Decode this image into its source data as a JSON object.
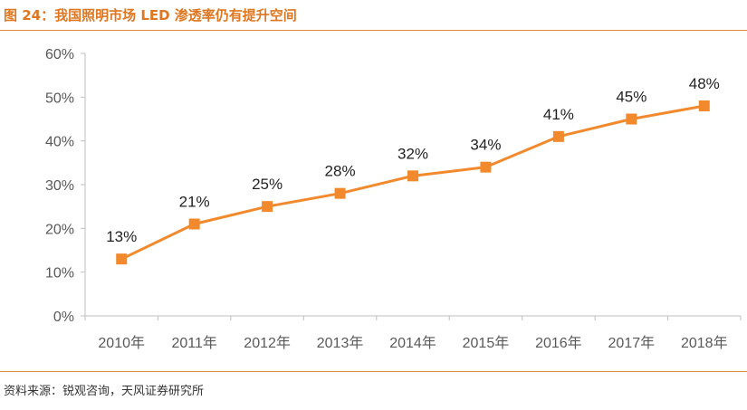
{
  "header": {
    "title": "图 24：我国照明市场 LED 渗透率仍有提升空间"
  },
  "footer": {
    "source": "资料来源：锐观咨询，天风证券研究所"
  },
  "chart_data": {
    "type": "line",
    "title": "",
    "xlabel": "",
    "ylabel": "",
    "categories": [
      "2010年",
      "2011年",
      "2012年",
      "2013年",
      "2014年",
      "2015年",
      "2016年",
      "2017年",
      "2018年"
    ],
    "series": [
      {
        "values": [
          13,
          21,
          25,
          28,
          32,
          34,
          41,
          45,
          48
        ],
        "color": "#f28a2d"
      }
    ],
    "data_labels": [
      "13%",
      "21%",
      "25%",
      "28%",
      "32%",
      "34%",
      "41%",
      "45%",
      "48%"
    ],
    "ylim": [
      0,
      60
    ],
    "yticks": [
      0,
      10,
      20,
      30,
      40,
      50,
      60
    ],
    "ytick_labels": [
      "0%",
      "10%",
      "20%",
      "30%",
      "40%",
      "50%",
      "60%"
    ],
    "grid": false,
    "marker": "square",
    "axis_color": "#bfbfbf"
  }
}
